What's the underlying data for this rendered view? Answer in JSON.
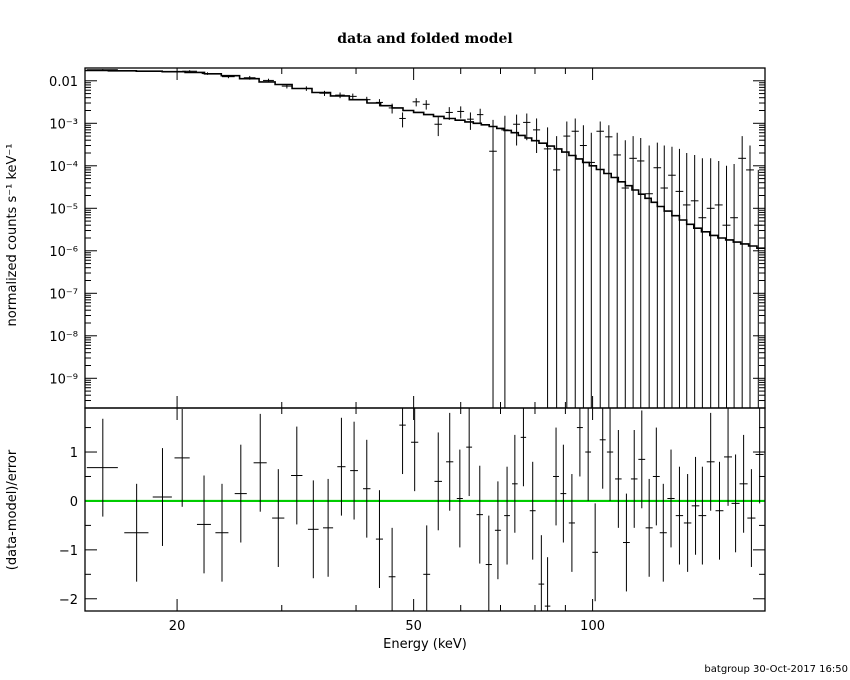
{
  "footer": "batgroup 30-Oct-2017 16:50",
  "chart_data": [
    {
      "type": "line",
      "title": "data and folded model",
      "xlabel": "",
      "ylabel": "normalized counts s⁻¹ keV⁻¹",
      "xscale": "log",
      "yscale": "log",
      "xlim": [
        14,
        195
      ],
      "ylim": [
        2e-10,
        0.02
      ],
      "x_ticks": [
        "20",
        "50",
        "100"
      ],
      "y_ticks": [
        "0.01",
        "10⁻³",
        "10⁻⁴",
        "10⁻⁵",
        "10⁻⁶",
        "10⁻⁷",
        "10⁻⁸",
        "10⁻⁹"
      ],
      "series": [
        {
          "values_x": [
            14.5,
            16.2,
            18.0,
            19.8,
            21.5,
            23.0,
            24.5,
            26.5,
            28.5,
            30.0,
            32.5,
            35.0,
            37.5,
            40.5,
            43.0,
            45.0,
            47.0,
            49.0,
            51.0,
            53.0,
            55.0,
            57.5,
            60.0,
            62.0,
            64.0,
            66.0,
            68.0,
            70.0,
            72.0,
            74.0,
            76.0,
            78.0,
            80.0,
            82.5,
            85.0,
            87.5,
            90.0,
            92.5,
            95.0,
            97.5,
            100.0,
            103.0,
            106.0,
            109.0,
            112.0,
            115.0,
            118.0,
            121.0,
            124.0,
            127.0,
            130.0,
            134.0,
            138.0,
            142.0,
            146.0,
            150.0,
            155.0,
            160.0,
            165.0,
            170.0,
            175.0,
            180.0,
            186.0,
            192.0
          ],
          "values_y": [
            0.0175,
            0.0172,
            0.0168,
            0.0164,
            0.0158,
            0.0146,
            0.0132,
            0.0112,
            0.0094,
            0.0082,
            0.0066,
            0.0053,
            0.0044,
            0.0036,
            0.003,
            0.0026,
            0.0023,
            0.002,
            0.0018,
            0.0016,
            0.00145,
            0.0013,
            0.00118,
            0.00108,
            0.001,
            0.00092,
            0.00084,
            0.00076,
            0.00068,
            0.0006,
            0.00052,
            0.00045,
            0.00039,
            0.00034,
            0.00029,
            0.00025,
            0.00021,
            0.000175,
            0.000145,
            0.00012,
            0.0001,
            8.2e-05,
            6.6e-05,
            5.3e-05,
            4.2e-05,
            3.4e-05,
            2.7e-05,
            2.15e-05,
            1.72e-05,
            1.38e-05,
            1.1e-05,
            8.6e-06,
            6.7e-06,
            5.3e-06,
            4.2e-06,
            3.4e-06,
            2.8e-06,
            2.3e-06,
            2e-06,
            1.8e-06,
            1.6e-06,
            1.45e-06,
            1.3e-06,
            1.15e-06
          ]
        }
      ],
      "points": [
        {
          "x": 15.0,
          "y": 0.0182,
          "xerr": 0.9,
          "ylo": 0.0175,
          "yhi": 0.0189
        },
        {
          "x": 17.1,
          "y": 0.017,
          "xerr": 0.8,
          "ylo": 0.0163,
          "yhi": 0.0177
        },
        {
          "x": 21.0,
          "y": 0.0168,
          "xerr": 0.6,
          "ylo": 0.0158,
          "yhi": 0.0178
        },
        {
          "x": 22.5,
          "y": 0.0148,
          "xerr": 0.5,
          "ylo": 0.0138,
          "yhi": 0.0158
        },
        {
          "x": 24.4,
          "y": 0.0125,
          "xerr": 0.6,
          "ylo": 0.0115,
          "yhi": 0.0135
        },
        {
          "x": 26.5,
          "y": 0.0118,
          "xerr": 0.6,
          "ylo": 0.0106,
          "yhi": 0.013
        },
        {
          "x": 28.5,
          "y": 0.0102,
          "xerr": 0.6,
          "ylo": 0.0092,
          "yhi": 0.0112
        },
        {
          "x": 30.6,
          "y": 0.0075,
          "xerr": 0.6,
          "ylo": 0.0066,
          "yhi": 0.0084
        },
        {
          "x": 33.0,
          "y": 0.0066,
          "xerr": 0.7,
          "ylo": 0.0058,
          "yhi": 0.0074
        },
        {
          "x": 35.4,
          "y": 0.0051,
          "xerr": 0.7,
          "ylo": 0.0044,
          "yhi": 0.0058
        },
        {
          "x": 37.6,
          "y": 0.0046,
          "xerr": 0.7,
          "ylo": 0.0039,
          "yhi": 0.0053
        },
        {
          "x": 39.5,
          "y": 0.0043,
          "xerr": 0.6,
          "ylo": 0.0036,
          "yhi": 0.005
        },
        {
          "x": 41.7,
          "y": 0.0036,
          "xerr": 0.6,
          "ylo": 0.003,
          "yhi": 0.0042
        },
        {
          "x": 43.8,
          "y": 0.0031,
          "xerr": 0.6,
          "ylo": 0.0025,
          "yhi": 0.0037
        },
        {
          "x": 46.0,
          "y": 0.0023,
          "xerr": 0.6,
          "ylo": 0.0017,
          "yhi": 0.0029
        },
        {
          "x": 47.9,
          "y": 0.0013,
          "xerr": 0.6,
          "ylo": 0.0008,
          "yhi": 0.0018
        },
        {
          "x": 50.5,
          "y": 0.0032,
          "xerr": 0.7,
          "ylo": 0.0025,
          "yhi": 0.0039
        },
        {
          "x": 52.5,
          "y": 0.0028,
          "xerr": 0.7,
          "ylo": 0.0021,
          "yhi": 0.0035
        },
        {
          "x": 55.0,
          "y": 0.00095,
          "xerr": 0.8,
          "ylo": 0.0005,
          "yhi": 0.0014
        },
        {
          "x": 57.4,
          "y": 0.0018,
          "xerr": 0.8,
          "ylo": 0.0012,
          "yhi": 0.0024
        },
        {
          "x": 60.0,
          "y": 0.0019,
          "xerr": 0.8,
          "ylo": 0.0013,
          "yhi": 0.0025
        },
        {
          "x": 62.3,
          "y": 0.00125,
          "xerr": 0.8,
          "ylo": 0.0007,
          "yhi": 0.0018
        },
        {
          "x": 64.7,
          "y": 0.0016,
          "xerr": 0.8,
          "ylo": 0.001,
          "yhi": 0.0022
        },
        {
          "x": 68.0,
          "y": 0.00022,
          "xerr": 1.0,
          "ylo": 2e-10,
          "yhi": 0.0012
        },
        {
          "x": 71.2,
          "y": 0.0007,
          "xerr": 1.0,
          "ylo": 2e-10,
          "yhi": 0.0015
        },
        {
          "x": 74.5,
          "y": 0.00095,
          "xerr": 1.0,
          "ylo": 0.0003,
          "yhi": 0.0016
        },
        {
          "x": 77.5,
          "y": 0.00105,
          "xerr": 1.1,
          "ylo": 0.0004,
          "yhi": 0.0017
        },
        {
          "x": 80.5,
          "y": 0.0007,
          "xerr": 1.1,
          "ylo": 0.0002,
          "yhi": 0.0013
        },
        {
          "x": 84.0,
          "y": 0.00025,
          "xerr": 1.2,
          "ylo": 2e-10,
          "yhi": 0.0008
        },
        {
          "x": 87.0,
          "y": 8e-05,
          "xerr": 1.2,
          "ylo": 2e-10,
          "yhi": 0.0005
        },
        {
          "x": 90.5,
          "y": 0.0005,
          "xerr": 1.2,
          "ylo": 2e-10,
          "yhi": 0.0011
        },
        {
          "x": 93.5,
          "y": 0.00065,
          "xerr": 1.3,
          "ylo": 2e-10,
          "yhi": 0.0013
        },
        {
          "x": 96.5,
          "y": 0.0003,
          "xerr": 1.3,
          "ylo": 2e-10,
          "yhi": 0.0009
        },
        {
          "x": 99.5,
          "y": 0.00012,
          "xerr": 1.4,
          "ylo": 2e-10,
          "yhi": 0.0006
        },
        {
          "x": 103.0,
          "y": 0.00065,
          "xerr": 1.5,
          "ylo": 2e-10,
          "yhi": 0.0011
        },
        {
          "x": 106.5,
          "y": 0.00048,
          "xerr": 1.5,
          "ylo": 2e-10,
          "yhi": 0.0009
        },
        {
          "x": 110.0,
          "y": 0.00018,
          "xerr": 1.6,
          "ylo": 2e-10,
          "yhi": 0.0006
        },
        {
          "x": 113.5,
          "y": 3e-05,
          "xerr": 1.6,
          "ylo": 2e-10,
          "yhi": 0.0004
        },
        {
          "x": 117.0,
          "y": 0.00015,
          "xerr": 1.7,
          "ylo": 2e-10,
          "yhi": 0.0005
        },
        {
          "x": 120.5,
          "y": 0.00013,
          "xerr": 1.7,
          "ylo": 2e-10,
          "yhi": 0.00045
        },
        {
          "x": 124.5,
          "y": 2.2e-05,
          "xerr": 1.8,
          "ylo": 2e-10,
          "yhi": 0.0003
        },
        {
          "x": 128.5,
          "y": 9e-05,
          "xerr": 1.9,
          "ylo": 2e-10,
          "yhi": 0.00035
        },
        {
          "x": 132.0,
          "y": 3e-05,
          "xerr": 1.9,
          "ylo": 2e-10,
          "yhi": 0.0003
        },
        {
          "x": 136.0,
          "y": 6e-05,
          "xerr": 2.0,
          "ylo": 2e-10,
          "yhi": 0.00028
        },
        {
          "x": 140.0,
          "y": 2.5e-05,
          "xerr": 2.1,
          "ylo": 2e-10,
          "yhi": 0.00025
        },
        {
          "x": 144.0,
          "y": 1.2e-05,
          "xerr": 2.1,
          "ylo": 2e-10,
          "yhi": 0.0002
        },
        {
          "x": 148.5,
          "y": 1.5e-05,
          "xerr": 2.2,
          "ylo": 2e-10,
          "yhi": 0.00018
        },
        {
          "x": 153.0,
          "y": 6e-06,
          "xerr": 2.3,
          "ylo": 2e-10,
          "yhi": 0.00015
        },
        {
          "x": 158.0,
          "y": 1e-05,
          "xerr": 2.4,
          "ylo": 2e-10,
          "yhi": 0.00015
        },
        {
          "x": 163.0,
          "y": 1.2e-05,
          "xerr": 2.5,
          "ylo": 2e-10,
          "yhi": 0.00013
        },
        {
          "x": 168.0,
          "y": 4e-06,
          "xerr": 2.6,
          "ylo": 2e-10,
          "yhi": 0.0001
        },
        {
          "x": 173.0,
          "y": 6e-06,
          "xerr": 2.6,
          "ylo": 2e-10,
          "yhi": 0.00011
        },
        {
          "x": 178.5,
          "y": 0.00015,
          "xerr": 2.7,
          "ylo": 2e-10,
          "yhi": 0.0005
        },
        {
          "x": 184.0,
          "y": 8e-05,
          "xerr": 2.8,
          "ylo": 2e-10,
          "yhi": 0.0003
        },
        {
          "x": 190.0,
          "y": 4e-06,
          "xerr": 3.0,
          "ylo": 2e-10,
          "yhi": 8e-05
        }
      ]
    },
    {
      "type": "scatter",
      "title": "",
      "xlabel": "Energy (keV)",
      "ylabel": "(data-model)/error",
      "xscale": "log",
      "xlim": [
        14,
        195
      ],
      "ylim": [
        -2.25,
        1.9
      ],
      "x_ticks": [
        "20",
        "50",
        "100"
      ],
      "y_ticks": [
        "1",
        "0",
        "−1",
        "−2"
      ],
      "series": [
        {
          "name": "",
          "values_x": [
            14,
            195
          ],
          "values_y": [
            0,
            0
          ],
          "color": "#00cc00"
        }
      ],
      "points": [
        {
          "x": 15.0,
          "y": 0.68,
          "xerr": 0.9,
          "ylo": -0.32,
          "yhi": 1.68
        },
        {
          "x": 17.1,
          "y": -0.65,
          "xerr": 0.8,
          "ylo": -1.65,
          "yhi": 0.35
        },
        {
          "x": 18.9,
          "y": 0.08,
          "xerr": 0.7,
          "ylo": -0.92,
          "yhi": 1.08
        },
        {
          "x": 20.4,
          "y": 0.88,
          "xerr": 0.6,
          "ylo": -0.12,
          "yhi": 1.88
        },
        {
          "x": 22.2,
          "y": -0.48,
          "xerr": 0.6,
          "ylo": -1.48,
          "yhi": 0.52
        },
        {
          "x": 23.8,
          "y": -0.65,
          "xerr": 0.6,
          "ylo": -1.65,
          "yhi": 0.35
        },
        {
          "x": 25.6,
          "y": 0.15,
          "xerr": 0.6,
          "ylo": -0.85,
          "yhi": 1.15
        },
        {
          "x": 27.6,
          "y": 0.78,
          "xerr": 0.7,
          "ylo": -0.22,
          "yhi": 1.78
        },
        {
          "x": 29.6,
          "y": -0.35,
          "xerr": 0.7,
          "ylo": -1.35,
          "yhi": 0.65
        },
        {
          "x": 31.8,
          "y": 0.52,
          "xerr": 0.7,
          "ylo": -0.48,
          "yhi": 1.52
        },
        {
          "x": 33.9,
          "y": -0.58,
          "xerr": 0.7,
          "ylo": -1.58,
          "yhi": 0.42
        },
        {
          "x": 35.9,
          "y": -0.55,
          "xerr": 0.7,
          "ylo": -1.55,
          "yhi": 0.45
        },
        {
          "x": 37.8,
          "y": 0.7,
          "xerr": 0.6,
          "ylo": -0.3,
          "yhi": 1.7
        },
        {
          "x": 39.7,
          "y": 0.62,
          "xerr": 0.6,
          "ylo": -0.38,
          "yhi": 1.62
        },
        {
          "x": 41.7,
          "y": 0.25,
          "xerr": 0.6,
          "ylo": -0.75,
          "yhi": 1.25
        },
        {
          "x": 43.8,
          "y": -0.78,
          "xerr": 0.6,
          "ylo": -1.78,
          "yhi": 0.22
        },
        {
          "x": 46.0,
          "y": -1.55,
          "xerr": 0.6,
          "ylo": -2.25,
          "yhi": -0.55
        },
        {
          "x": 47.9,
          "y": 1.55,
          "xerr": 0.6,
          "ylo": 0.55,
          "yhi": 1.9
        },
        {
          "x": 50.2,
          "y": 1.2,
          "xerr": 0.7,
          "ylo": 0.2,
          "yhi": 1.9
        },
        {
          "x": 52.6,
          "y": -1.5,
          "xerr": 0.7,
          "ylo": -2.25,
          "yhi": -0.5
        },
        {
          "x": 55.0,
          "y": 0.4,
          "xerr": 0.8,
          "ylo": -0.6,
          "yhi": 1.4
        },
        {
          "x": 57.5,
          "y": 0.8,
          "xerr": 0.8,
          "ylo": -0.2,
          "yhi": 1.8
        },
        {
          "x": 59.8,
          "y": 0.05,
          "xerr": 0.7,
          "ylo": -0.95,
          "yhi": 1.05
        },
        {
          "x": 62.0,
          "y": 1.1,
          "xerr": 0.7,
          "ylo": 0.1,
          "yhi": 1.9
        },
        {
          "x": 64.6,
          "y": -0.28,
          "xerr": 0.8,
          "ylo": -1.28,
          "yhi": 0.72
        },
        {
          "x": 66.9,
          "y": -1.3,
          "xerr": 0.8,
          "ylo": -2.25,
          "yhi": -0.3
        },
        {
          "x": 69.3,
          "y": -0.6,
          "xerr": 0.8,
          "ylo": -1.6,
          "yhi": 0.4
        },
        {
          "x": 71.8,
          "y": -0.3,
          "xerr": 0.8,
          "ylo": -1.3,
          "yhi": 0.7
        },
        {
          "x": 74.0,
          "y": 0.35,
          "xerr": 0.8,
          "ylo": -0.65,
          "yhi": 1.35
        },
        {
          "x": 76.5,
          "y": 1.3,
          "xerr": 0.8,
          "ylo": 0.3,
          "yhi": 1.9
        },
        {
          "x": 79.3,
          "y": -0.2,
          "xerr": 0.9,
          "ylo": -1.2,
          "yhi": 0.8
        },
        {
          "x": 82.0,
          "y": -1.7,
          "xerr": 0.9,
          "ylo": -2.25,
          "yhi": -0.7
        },
        {
          "x": 84.0,
          "y": -2.15,
          "xerr": 0.9,
          "ylo": -2.25,
          "yhi": -1.15
        },
        {
          "x": 86.8,
          "y": 0.5,
          "xerr": 1.0,
          "ylo": -0.5,
          "yhi": 1.5
        },
        {
          "x": 89.3,
          "y": 0.15,
          "xerr": 1.0,
          "ylo": -0.85,
          "yhi": 1.15
        },
        {
          "x": 92.3,
          "y": -0.45,
          "xerr": 1.1,
          "ylo": -1.45,
          "yhi": 0.55
        },
        {
          "x": 95.2,
          "y": 1.5,
          "xerr": 1.1,
          "ylo": 0.5,
          "yhi": 1.9
        },
        {
          "x": 98.3,
          "y": 1.0,
          "xerr": 1.1,
          "ylo": 0.0,
          "yhi": 1.9
        },
        {
          "x": 101.0,
          "y": -1.05,
          "xerr": 1.1,
          "ylo": -2.05,
          "yhi": -0.05
        },
        {
          "x": 104.0,
          "y": 1.25,
          "xerr": 1.2,
          "ylo": 0.25,
          "yhi": 1.9
        },
        {
          "x": 107.0,
          "y": 1.0,
          "xerr": 1.3,
          "ylo": 0.0,
          "yhi": 1.9
        },
        {
          "x": 110.5,
          "y": 0.45,
          "xerr": 1.4,
          "ylo": -0.55,
          "yhi": 1.45
        },
        {
          "x": 114.0,
          "y": -0.85,
          "xerr": 1.5,
          "ylo": -1.85,
          "yhi": 0.15
        },
        {
          "x": 117.5,
          "y": 0.45,
          "xerr": 1.5,
          "ylo": -0.55,
          "yhi": 1.45
        },
        {
          "x": 121.0,
          "y": 0.85,
          "xerr": 1.6,
          "ylo": -0.15,
          "yhi": 1.85
        },
        {
          "x": 124.5,
          "y": -0.55,
          "xerr": 1.7,
          "ylo": -1.55,
          "yhi": 0.45
        },
        {
          "x": 128.0,
          "y": 0.5,
          "xerr": 1.7,
          "ylo": -0.5,
          "yhi": 1.5
        },
        {
          "x": 131.5,
          "y": -0.65,
          "xerr": 1.8,
          "ylo": -1.65,
          "yhi": 0.35
        },
        {
          "x": 135.5,
          "y": 0.05,
          "xerr": 1.9,
          "ylo": -0.95,
          "yhi": 1.05
        },
        {
          "x": 140.0,
          "y": -0.3,
          "xerr": 2.0,
          "ylo": -1.3,
          "yhi": 0.7
        },
        {
          "x": 144.5,
          "y": -0.45,
          "xerr": 2.1,
          "ylo": -1.45,
          "yhi": 0.55
        },
        {
          "x": 149.0,
          "y": -0.1,
          "xerr": 2.2,
          "ylo": -1.1,
          "yhi": 0.9
        },
        {
          "x": 153.0,
          "y": -0.3,
          "xerr": 2.3,
          "ylo": -1.3,
          "yhi": 0.7
        },
        {
          "x": 158.0,
          "y": 0.8,
          "xerr": 2.4,
          "ylo": -0.2,
          "yhi": 1.8
        },
        {
          "x": 163.5,
          "y": -0.2,
          "xerr": 2.5,
          "ylo": -1.2,
          "yhi": 0.8
        },
        {
          "x": 169.0,
          "y": 0.9,
          "xerr": 2.6,
          "ylo": -0.1,
          "yhi": 1.9
        },
        {
          "x": 174.0,
          "y": -0.05,
          "xerr": 2.7,
          "ylo": -1.05,
          "yhi": 0.95
        },
        {
          "x": 179.5,
          "y": 0.35,
          "xerr": 2.8,
          "ylo": -0.65,
          "yhi": 1.35
        },
        {
          "x": 185.0,
          "y": -0.35,
          "xerr": 2.9,
          "ylo": -1.35,
          "yhi": 0.65
        },
        {
          "x": 191.0,
          "y": 0.95,
          "xerr": 3.0,
          "ylo": -0.05,
          "yhi": 1.9
        }
      ]
    }
  ]
}
